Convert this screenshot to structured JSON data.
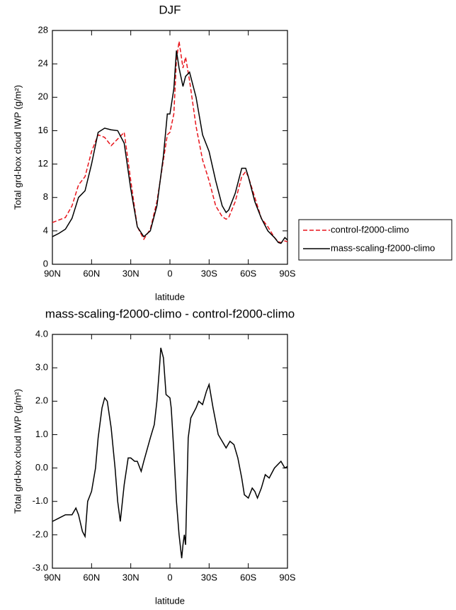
{
  "chart_data": [
    {
      "type": "line",
      "title": "DJF",
      "xlabel": "latitude",
      "ylabel": "Total grd-box cloud IWP (g/m²)",
      "x": [
        90,
        85,
        80,
        75,
        70,
        65,
        60,
        55,
        50,
        45,
        40,
        35,
        30,
        25,
        20,
        15,
        10,
        5,
        2,
        0,
        -3,
        -5,
        -7,
        -10,
        -12,
        -15,
        -20,
        -25,
        -30,
        -35,
        -40,
        -43,
        -45,
        -50,
        -55,
        -58,
        -60,
        -65,
        -70,
        -75,
        -80,
        -83,
        -85,
        -88,
        -90
      ],
      "series": [
        {
          "name": "control-f2000-climo",
          "color": "#e8141b",
          "dash": true,
          "values": [
            5.0,
            5.3,
            5.6,
            7.0,
            9.5,
            10.5,
            13.5,
            15.5,
            15.2,
            14.2,
            15.0,
            15.8,
            10.0,
            4.5,
            3.0,
            4.2,
            7.5,
            12.5,
            15.5,
            15.8,
            18,
            24.5,
            26.7,
            23.5,
            24.8,
            22,
            16.5,
            12.5,
            10,
            7,
            5.7,
            5.4,
            5.6,
            7.5,
            10.5,
            11.1,
            10.5,
            8.0,
            5.5,
            4.5,
            3.2,
            2.7,
            2.6,
            2.8,
            2.7
          ]
        },
        {
          "name": "mass-scaling-f2000-climo",
          "color": "#000000",
          "dash": false,
          "values": [
            3.3,
            3.7,
            4.2,
            5.5,
            8.0,
            8.8,
            12.0,
            15.8,
            16.3,
            16.1,
            16.0,
            14.5,
            9.0,
            4.5,
            3.3,
            4.0,
            7.0,
            13.0,
            18.0,
            18.0,
            21,
            25.6,
            23.5,
            21.3,
            22.5,
            23.0,
            20,
            15.5,
            13.5,
            10,
            7.0,
            6.2,
            6.5,
            8.5,
            11.5,
            11.5,
            10.5,
            7.5,
            5.5,
            4.0,
            3.2,
            2.6,
            2.5,
            3.2,
            2.9
          ]
        }
      ],
      "xlim": [
        90,
        -90
      ],
      "xticks": [
        {
          "value": 90,
          "label": "90N"
        },
        {
          "value": 60,
          "label": "60N"
        },
        {
          "value": 30,
          "label": "30N"
        },
        0,
        {
          "value": -30,
          "label": "30S"
        },
        {
          "value": -60,
          "label": "60S"
        },
        {
          "value": -90,
          "label": "90S"
        }
      ],
      "ylim": [
        0,
        28
      ],
      "yticks": [
        0,
        4,
        8,
        12,
        16,
        20,
        24,
        28
      ],
      "legend": "right"
    },
    {
      "type": "line",
      "title": "mass-scaling-f2000-climo - control-f2000-climo",
      "xlabel": "latitude",
      "ylabel": "Total grd-box cloud IWP (g/m²)",
      "x": [
        90,
        85,
        80,
        75,
        72,
        70,
        67,
        65,
        63,
        60,
        57,
        55,
        52,
        50,
        48,
        45,
        42,
        40,
        38,
        35,
        32,
        30,
        27,
        25,
        22,
        20,
        15,
        12,
        10,
        8,
        7,
        5,
        3,
        0,
        -1,
        -3,
        -5,
        -7,
        -9,
        -10,
        -11,
        -12,
        -14,
        -16,
        -20,
        -22,
        -25,
        -28,
        -30,
        -33,
        -37,
        -40,
        -43,
        -46,
        -49,
        -52,
        -55,
        -57,
        -60,
        -63,
        -65,
        -67,
        -70,
        -73,
        -76,
        -80,
        -85,
        -88,
        -90
      ],
      "values": [
        -1.6,
        -1.5,
        -1.4,
        -1.4,
        -1.2,
        -1.4,
        -1.9,
        -2.05,
        -1.0,
        -0.7,
        0.0,
        0.9,
        1.8,
        2.1,
        2.0,
        1.2,
        0.0,
        -1.0,
        -1.6,
        -0.5,
        0.3,
        0.3,
        0.2,
        0.2,
        -0.1,
        0.2,
        0.9,
        1.3,
        2.0,
        3.0,
        3.6,
        3.3,
        2.2,
        2.1,
        1.8,
        0.5,
        -1.0,
        -2.0,
        -2.7,
        -2.3,
        -2.0,
        -2.3,
        0.9,
        1.5,
        1.8,
        2.0,
        1.9,
        2.3,
        2.5,
        1.8,
        1.0,
        0.8,
        0.6,
        0.8,
        0.7,
        0.3,
        -0.3,
        -0.8,
        -0.9,
        -0.6,
        -0.7,
        -0.9,
        -0.6,
        -0.2,
        -0.3,
        0.0,
        0.2,
        0.0,
        0.05
      ],
      "color": "#000000",
      "xlim": [
        90,
        -90
      ],
      "xticks": [
        {
          "value": 90,
          "label": "90N"
        },
        {
          "value": 60,
          "label": "60N"
        },
        {
          "value": 30,
          "label": "30N"
        },
        0,
        {
          "value": -30,
          "label": "30S"
        },
        {
          "value": -60,
          "label": "60S"
        },
        {
          "value": -90,
          "label": "90S"
        }
      ],
      "ylim": [
        -3,
        4
      ],
      "yticks": [
        {
          "value": -3,
          "label": "-3.0"
        },
        {
          "value": -2,
          "label": "-2.0"
        },
        {
          "value": -1,
          "label": "-1.0"
        },
        {
          "value": 0,
          "label": "0.0"
        },
        {
          "value": 1,
          "label": "1.0"
        },
        {
          "value": 2,
          "label": "2.0"
        },
        {
          "value": 3,
          "label": "3.0"
        },
        {
          "value": 4,
          "label": "4.0"
        }
      ]
    }
  ]
}
